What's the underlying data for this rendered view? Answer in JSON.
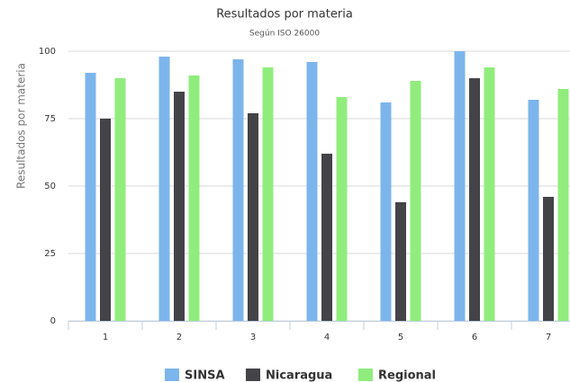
{
  "chart_data": {
    "type": "bar",
    "title": "Resultados por materia",
    "subtitle": "Según ISO 26000",
    "ylabel": "Resultados por materia",
    "categories": [
      "1",
      "2",
      "3",
      "4",
      "5",
      "6",
      "7"
    ],
    "series": [
      {
        "name": "SINSA",
        "color": "#7cb5ec",
        "values": [
          92,
          98,
          97,
          96,
          81,
          100,
          82
        ]
      },
      {
        "name": "Nicaragua",
        "color": "#434348",
        "values": [
          75,
          85,
          77,
          62,
          44,
          90,
          46
        ]
      },
      {
        "name": "Regional",
        "color": "#90ed7d",
        "values": [
          90,
          91,
          94,
          83,
          89,
          94,
          86
        ]
      }
    ],
    "ylim": [
      0,
      100
    ],
    "yticks": [
      0,
      25,
      50,
      75,
      100
    ],
    "grid": true,
    "legend": "bottom"
  }
}
